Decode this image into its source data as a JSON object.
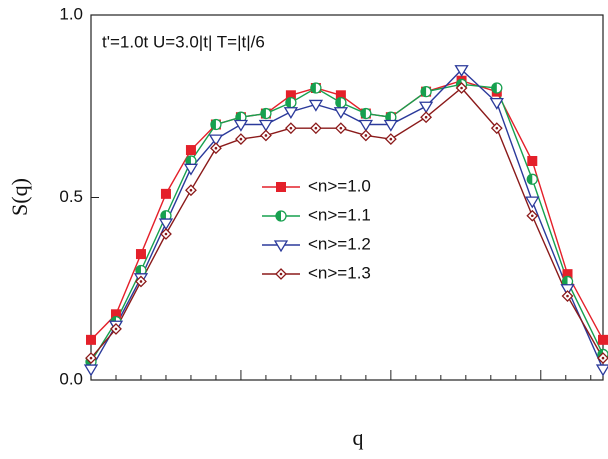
{
  "chart_data": {
    "type": "line",
    "annotation": "t'=1.0t U=3.0|t| T=|t|/6",
    "x_label": "q",
    "y_label": "S(q)",
    "x": [
      0,
      1,
      2,
      3,
      4,
      5,
      6,
      7,
      8,
      9,
      10,
      11,
      12,
      13.41,
      14.83,
      16.24,
      17.66,
      19.07,
      20.49
    ],
    "xlim": [
      0,
      20.49
    ],
    "xticks": [
      0,
      1,
      2,
      3,
      4,
      5,
      6,
      7,
      8,
      9,
      10,
      11,
      12,
      13,
      14,
      15,
      16,
      17,
      18,
      19,
      20
    ],
    "ylim": [
      0,
      1
    ],
    "yticks": [
      {
        "value": 0,
        "label": "0.0"
      },
      0.5,
      {
        "value": 1,
        "label": "1.0"
      }
    ],
    "series": [
      {
        "name": "<n>=1.0",
        "color": "#e4202a",
        "marker": "square",
        "values": [
          0.11,
          0.18,
          0.345,
          0.51,
          0.63,
          0.7,
          0.72,
          0.73,
          0.78,
          0.8,
          0.78,
          0.73,
          0.72,
          0.79,
          0.82,
          0.79,
          0.6,
          0.29,
          0.11
        ]
      },
      {
        "name": "<n>=1.1",
        "color": "#17a04f",
        "marker": "half-circle",
        "values": [
          0.05,
          0.16,
          0.3,
          0.45,
          0.6,
          0.7,
          0.72,
          0.73,
          0.76,
          0.8,
          0.76,
          0.73,
          0.72,
          0.79,
          0.81,
          0.8,
          0.55,
          0.27,
          0.07
        ]
      },
      {
        "name": "<n>=1.2",
        "color": "#2b3a9b",
        "marker": "triangle-down",
        "values": [
          0.03,
          0.15,
          0.28,
          0.43,
          0.58,
          0.66,
          0.7,
          0.7,
          0.735,
          0.755,
          0.735,
          0.7,
          0.7,
          0.75,
          0.85,
          0.76,
          0.49,
          0.25,
          0.03
        ]
      },
      {
        "name": "<n>=1.3",
        "color": "#8b1a1a",
        "marker": "diamond",
        "values": [
          0.06,
          0.14,
          0.27,
          0.4,
          0.52,
          0.635,
          0.66,
          0.67,
          0.69,
          0.69,
          0.69,
          0.67,
          0.66,
          0.72,
          0.8,
          0.69,
          0.45,
          0.23,
          0.06
        ]
      }
    ]
  }
}
